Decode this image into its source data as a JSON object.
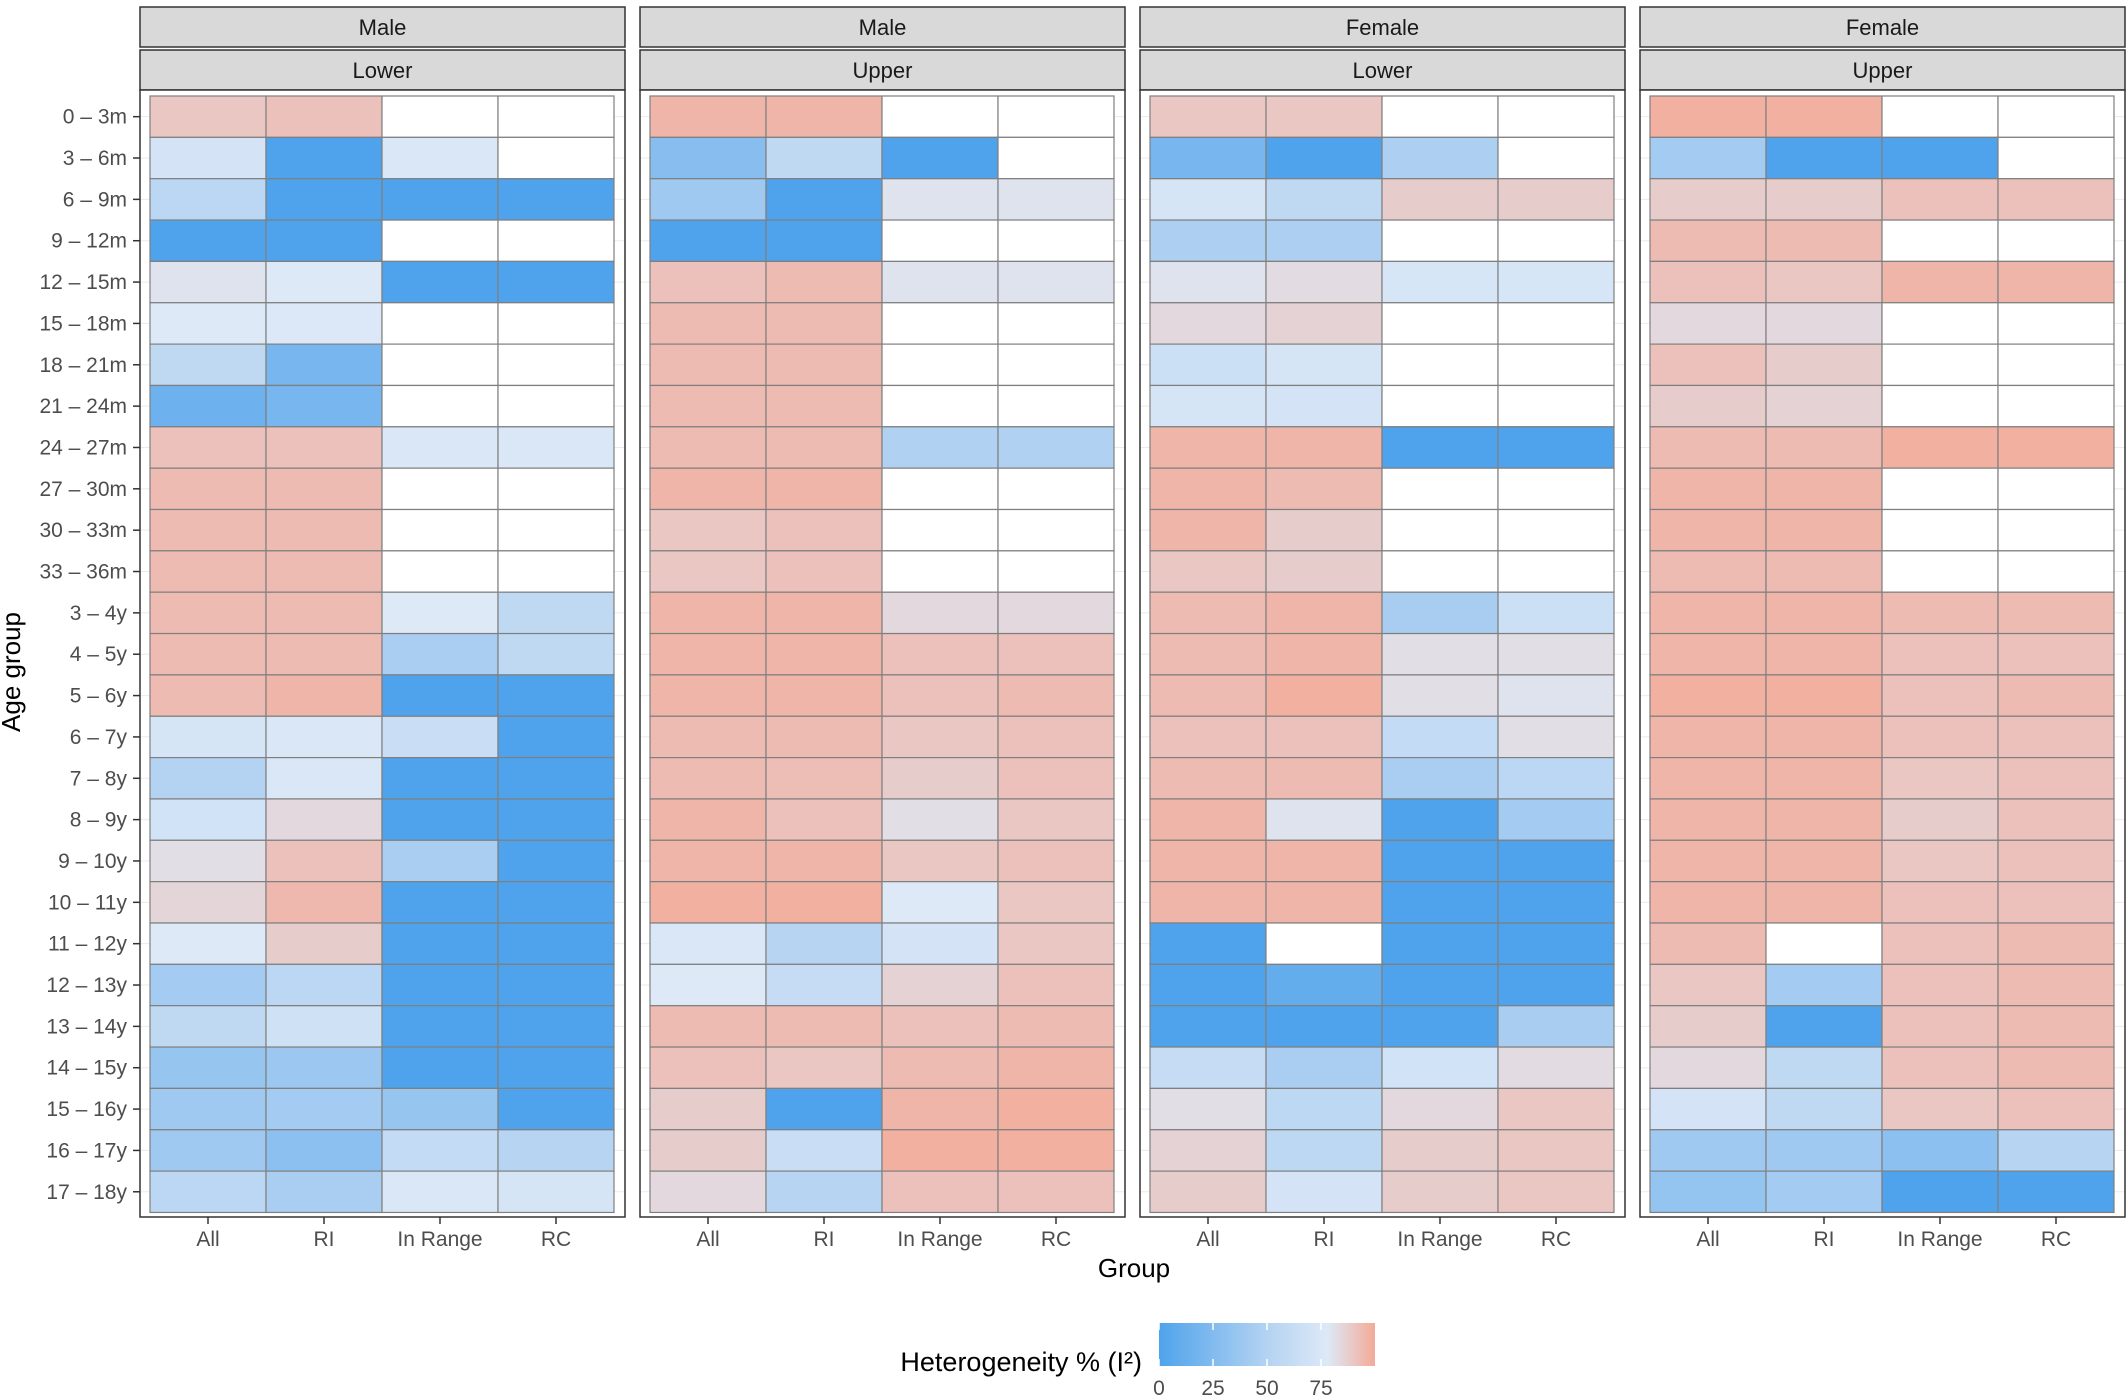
{
  "chart_data": {
    "type": "heatmap",
    "xlabel": "Group",
    "ylabel": "Age group",
    "x_categories": [
      "All",
      "RI",
      "In Range",
      "RC"
    ],
    "y_categories": [
      "0 – 3m",
      "3 – 6m",
      "6 – 9m",
      "9 – 12m",
      "12 – 15m",
      "15 – 18m",
      "18 – 21m",
      "21 – 24m",
      "24 – 27m",
      "27 – 30m",
      "30 – 33m",
      "33 – 36m",
      "3 – 4y",
      "4 – 5y",
      "5 – 6y",
      "6 – 7y",
      "7 – 8y",
      "8 – 9y",
      "9 – 10y",
      "10 – 11y",
      "11 – 12y",
      "12 – 13y",
      "13 – 14y",
      "14 – 15y",
      "15 – 16y",
      "16 – 17y",
      "17 – 18y"
    ],
    "legend": {
      "title": "Heterogeneity % (I²)",
      "ticks": [
        "0",
        "25",
        "50",
        "75"
      ],
      "range": [
        0,
        100
      ],
      "position": "bottom",
      "colors": {
        "low": "#4fa3ec",
        "mid": "#dde9f7",
        "high": "#f4aa98",
        "empty": "#ffffff"
      }
    },
    "facets": [
      {
        "sex": "Male",
        "limit": "Lower",
        "values": [
          [
            90,
            92,
            null,
            null
          ],
          [
            72,
            0,
            75,
            null
          ],
          [
            55,
            0,
            0,
            0
          ],
          [
            0,
            0,
            null,
            null
          ],
          [
            80,
            78,
            0,
            0
          ],
          [
            78,
            77,
            null,
            null
          ],
          [
            58,
            20,
            null,
            null
          ],
          [
            15,
            20,
            null,
            null
          ],
          [
            92,
            92,
            75,
            75
          ],
          [
            94,
            94,
            null,
            null
          ],
          [
            94,
            94,
            null,
            null
          ],
          [
            94,
            94,
            null,
            null
          ],
          [
            94,
            94,
            78,
            58
          ],
          [
            94,
            94,
            45,
            58
          ],
          [
            94,
            96,
            0,
            0
          ],
          [
            73,
            75,
            64,
            0
          ],
          [
            50,
            76,
            0,
            0
          ],
          [
            70,
            84,
            0,
            0
          ],
          [
            82,
            92,
            45,
            0
          ],
          [
            85,
            95,
            0,
            0
          ],
          [
            78,
            88,
            0,
            0
          ],
          [
            42,
            55,
            0,
            0
          ],
          [
            58,
            68,
            0,
            0
          ],
          [
            35,
            38,
            0,
            0
          ],
          [
            40,
            42,
            35,
            0
          ],
          [
            40,
            30,
            60,
            52
          ],
          [
            55,
            45,
            75,
            73
          ]
        ]
      },
      {
        "sex": "Male",
        "limit": "Upper",
        "values": [
          [
            96,
            96,
            null,
            null
          ],
          [
            28,
            58,
            0,
            null
          ],
          [
            40,
            0,
            80,
            80
          ],
          [
            0,
            0,
            null,
            null
          ],
          [
            92,
            94,
            80,
            80
          ],
          [
            94,
            94,
            null,
            null
          ],
          [
            94,
            94,
            null,
            null
          ],
          [
            94,
            94,
            null,
            null
          ],
          [
            94,
            94,
            48,
            48
          ],
          [
            96,
            96,
            null,
            null
          ],
          [
            90,
            92,
            null,
            null
          ],
          [
            90,
            92,
            null,
            null
          ],
          [
            96,
            96,
            84,
            84
          ],
          [
            96,
            96,
            92,
            92
          ],
          [
            96,
            96,
            92,
            94
          ],
          [
            94,
            94,
            90,
            92
          ],
          [
            94,
            93,
            88,
            92
          ],
          [
            96,
            92,
            82,
            90
          ],
          [
            96,
            96,
            90,
            92
          ],
          [
            98,
            98,
            78,
            90
          ],
          [
            76,
            52,
            72,
            90
          ],
          [
            78,
            62,
            86,
            92
          ],
          [
            94,
            94,
            92,
            94
          ],
          [
            92,
            90,
            94,
            96
          ],
          [
            88,
            0,
            96,
            98
          ],
          [
            88,
            64,
            98,
            98
          ],
          [
            84,
            52,
            92,
            92
          ]
        ]
      },
      {
        "sex": "Female",
        "limit": "Lower",
        "values": [
          [
            90,
            90,
            null,
            null
          ],
          [
            20,
            0,
            46,
            null
          ],
          [
            73,
            58,
            88,
            88
          ],
          [
            46,
            46,
            null,
            null
          ],
          [
            80,
            83,
            74,
            74
          ],
          [
            84,
            86,
            null,
            null
          ],
          [
            66,
            73,
            null,
            null
          ],
          [
            73,
            72,
            null,
            null
          ],
          [
            96,
            96,
            0,
            0
          ],
          [
            96,
            94,
            null,
            null
          ],
          [
            96,
            88,
            null,
            null
          ],
          [
            90,
            88,
            null,
            null
          ],
          [
            94,
            96,
            44,
            66
          ],
          [
            94,
            96,
            82,
            82
          ],
          [
            94,
            98,
            82,
            80
          ],
          [
            92,
            92,
            60,
            82
          ],
          [
            94,
            94,
            45,
            55
          ],
          [
            96,
            80,
            0,
            42
          ],
          [
            96,
            96,
            0,
            0
          ],
          [
            96,
            96,
            0,
            0
          ],
          [
            0,
            null,
            0,
            0
          ],
          [
            0,
            10,
            0,
            0
          ],
          [
            0,
            0,
            0,
            44
          ],
          [
            62,
            45,
            70,
            83
          ],
          [
            82,
            56,
            84,
            90
          ],
          [
            86,
            56,
            88,
            90
          ],
          [
            88,
            72,
            88,
            90
          ]
        ]
      },
      {
        "sex": "Female",
        "limit": "Upper",
        "values": [
          [
            98,
            98,
            null,
            null
          ],
          [
            42,
            0,
            0,
            null
          ],
          [
            88,
            88,
            92,
            92
          ],
          [
            94,
            94,
            null,
            null
          ],
          [
            92,
            90,
            96,
            96
          ],
          [
            84,
            84,
            null,
            null
          ],
          [
            92,
            88,
            null,
            null
          ],
          [
            88,
            86,
            null,
            null
          ],
          [
            94,
            94,
            98,
            98
          ],
          [
            96,
            96,
            null,
            null
          ],
          [
            96,
            96,
            null,
            null
          ],
          [
            94,
            94,
            null,
            null
          ],
          [
            96,
            96,
            94,
            94
          ],
          [
            96,
            96,
            92,
            92
          ],
          [
            98,
            98,
            92,
            94
          ],
          [
            96,
            96,
            92,
            92
          ],
          [
            96,
            96,
            90,
            92
          ],
          [
            96,
            96,
            88,
            92
          ],
          [
            96,
            96,
            90,
            92
          ],
          [
            96,
            96,
            92,
            92
          ],
          [
            94,
            null,
            92,
            94
          ],
          [
            90,
            42,
            92,
            94
          ],
          [
            88,
            0,
            92,
            94
          ],
          [
            84,
            58,
            92,
            94
          ],
          [
            72,
            58,
            90,
            92
          ],
          [
            40,
            40,
            30,
            52
          ],
          [
            34,
            42,
            0,
            0
          ]
        ]
      }
    ]
  }
}
